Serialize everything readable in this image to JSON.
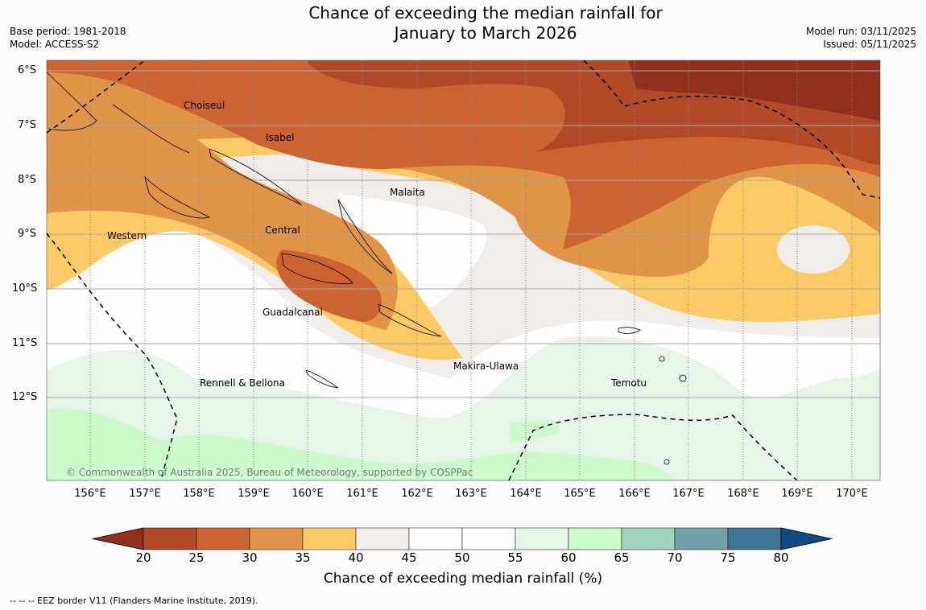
{
  "header": {
    "title_line1": "Chance of exceeding the median rainfall for",
    "title_line2": "January to March 2026",
    "base_period": "Base period: 1981-2018",
    "model": "Model: ACCESS-S2",
    "model_run": "Model run: 03/11/2025",
    "issued": "Issued: 05/11/2025"
  },
  "map": {
    "latitude_labels": [
      "6°S",
      "7°S",
      "8°S",
      "9°S",
      "10°S",
      "11°S",
      "12°S"
    ],
    "longitude_labels": [
      "156°E",
      "157°E",
      "158°E",
      "159°E",
      "160°E",
      "161°E",
      "162°E",
      "163°E",
      "164°E",
      "165°E",
      "166°E",
      "167°E",
      "168°E",
      "169°E",
      "170°E"
    ],
    "regions": [
      "Choiseul",
      "Isabel",
      "Malaita",
      "Western",
      "Central",
      "Guadalcanal",
      "Makira-Ulawa",
      "Rennell & Bellona",
      "Temotu"
    ],
    "copyright": "© Commonwealth of Australia 2025, Bureau of Meteorology, supported by COSPPac"
  },
  "colorbar": {
    "title": "Chance of exceeding median rainfall (%)",
    "ticks": [
      "20",
      "25",
      "30",
      "35",
      "40",
      "45",
      "50",
      "55",
      "60",
      "65",
      "70",
      "75",
      "80"
    ],
    "colors": [
      "#8f311c",
      "#b04a26",
      "#cc6431",
      "#e09447",
      "#fdca66",
      "#f1edea",
      "#fdfdfd",
      "#fefefe",
      "#e8f4ea",
      "#ccfcce",
      "#9ed4bd",
      "#6fa3a8",
      "#3d7494",
      "#0f4c83"
    ]
  },
  "footnote": "--  --  -- EEZ border V11 (Flanders Marine Institute, 2019)."
}
